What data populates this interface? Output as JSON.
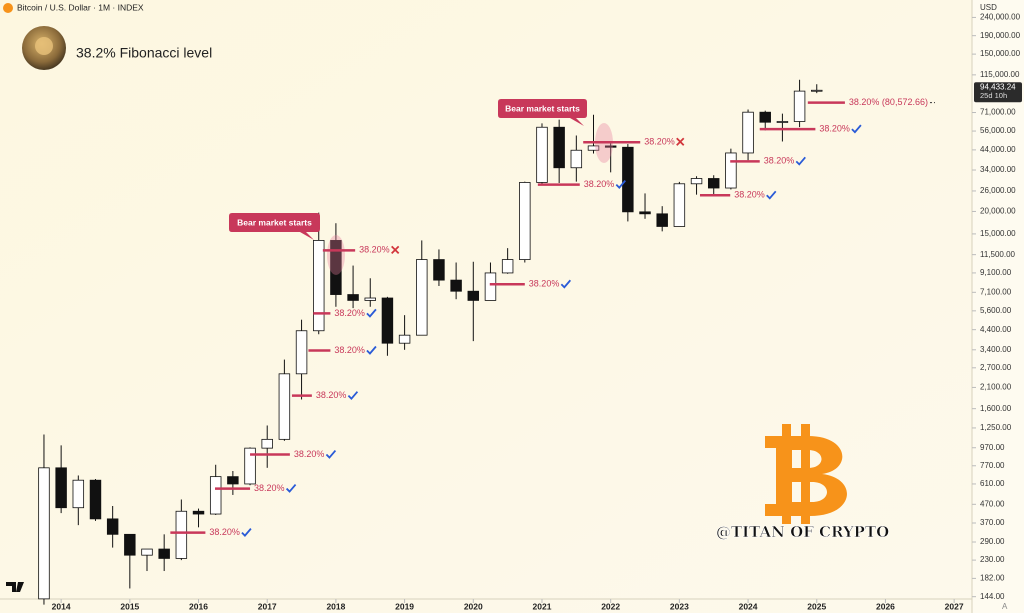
{
  "chart_data": {
    "type": "candlestick",
    "header": "Bitcoin / U.S. Dollar · 1M · INDEX",
    "title": "38.2% Fibonacci level",
    "currency": "USD",
    "scale_mode": "A",
    "watermark": "@TITAN OF CRYPTO",
    "log_scale": true,
    "x": [
      2013.75,
      2014.0,
      2014.25,
      2014.5,
      2014.75,
      2015.0,
      2015.25,
      2015.5,
      2015.75,
      2016.0,
      2016.25,
      2016.5,
      2016.75,
      2017.0,
      2017.25,
      2017.5,
      2017.75,
      2018.0,
      2018.25,
      2018.5,
      2018.75,
      2019.0,
      2019.25,
      2019.5,
      2019.75,
      2020.0,
      2020.25,
      2020.5,
      2020.75,
      2021.0,
      2021.25,
      2021.5,
      2021.75,
      2022.0,
      2022.25,
      2022.5,
      2022.75,
      2023.0,
      2023.25,
      2023.5,
      2023.75,
      2024.0,
      2024.25,
      2024.5,
      2024.75,
      2025.0
    ],
    "open": [
      140,
      750,
      450,
      640,
      390,
      320,
      245,
      265,
      235,
      430,
      415,
      670,
      610,
      965,
      1080,
      2500,
      4340,
      13800,
      6900,
      6400,
      6600,
      3700,
      4100,
      10800,
      8300,
      7200,
      6400,
      9100,
      10800,
      29000,
      58800,
      35000,
      43800,
      46300,
      45500,
      19900,
      19400,
      16500,
      28500,
      30500,
      27000,
      42300,
      71300,
      62700,
      63300,
      93400
    ],
    "high": [
      1150,
      1000,
      680,
      650,
      460,
      320,
      265,
      320,
      500,
      445,
      780,
      720,
      975,
      1290,
      3000,
      5000,
      19700,
      17200,
      10000,
      8500,
      6700,
      5300,
      13800,
      12300,
      10400,
      10500,
      10400,
      12500,
      29300,
      61800,
      64800,
      52900,
      69000,
      48200,
      47400,
      25200,
      21400,
      29200,
      31400,
      31800,
      44700,
      73800,
      72700,
      70000,
      108000,
      102000
    ],
    "low": [
      130,
      420,
      360,
      380,
      270,
      160,
      200,
      200,
      230,
      350,
      410,
      530,
      600,
      750,
      1060,
      1800,
      4150,
      5900,
      5800,
      5900,
      3150,
      3400,
      4100,
      7700,
      6500,
      3800,
      6400,
      9000,
      10400,
      28000,
      28800,
      29300,
      42000,
      33000,
      17600,
      18200,
      15500,
      16500,
      24800,
      24900,
      26500,
      38500,
      56500,
      49000,
      58900,
      91000
    ],
    "close": [
      750,
      450,
      640,
      390,
      320,
      245,
      265,
      235,
      430,
      415,
      670,
      610,
      965,
      1080,
      2500,
      4340,
      13800,
      6900,
      6400,
      6600,
      3700,
      4100,
      10800,
      8300,
      7200,
      6400,
      9100,
      10800,
      29000,
      58800,
      35000,
      43800,
      46300,
      45500,
      19900,
      19400,
      16500,
      28500,
      30500,
      27000,
      42300,
      71300,
      62700,
      63300,
      93400,
      94433.24
    ],
    "xlim": [
      2013.11,
      2027.26
    ],
    "xticks": [
      2014,
      2015,
      2016,
      2017,
      2018,
      2019,
      2020,
      2021,
      2022,
      2023,
      2024,
      2025,
      2026,
      2027
    ],
    "ylim": [
      138,
      300000
    ],
    "yticks": [
      {
        "value": 144,
        "label": "144.00"
      },
      {
        "value": 182,
        "label": "182.00"
      },
      {
        "value": 230,
        "label": "230.00"
      },
      {
        "value": 290,
        "label": "290.00"
      },
      {
        "value": 370,
        "label": "370.00"
      },
      {
        "value": 470,
        "label": "470.00"
      },
      {
        "value": 610,
        "label": "610.00"
      },
      {
        "value": 770,
        "label": "770.00"
      },
      {
        "value": 970,
        "label": "970.00"
      },
      {
        "value": 1250,
        "label": "1,250.00"
      },
      {
        "value": 1600,
        "label": "1,600.00"
      },
      {
        "value": 2100,
        "label": "2,100.00"
      },
      {
        "value": 2700,
        "label": "2,700.00"
      },
      {
        "value": 3400,
        "label": "3,400.00"
      },
      {
        "value": 4400,
        "label": "4,400.00"
      },
      {
        "value": 5600,
        "label": "5,600.00"
      },
      {
        "value": 7100,
        "label": "7,100.00"
      },
      {
        "value": 9100,
        "label": "9,100.00"
      },
      {
        "value": 11500,
        "label": "11,500.00"
      },
      {
        "value": 15000,
        "label": "15,000.00"
      },
      {
        "value": 20000,
        "label": "20,000.00"
      },
      {
        "value": 26000,
        "label": "26,000.00"
      },
      {
        "value": 34000,
        "label": "34,000.00"
      },
      {
        "value": 44000,
        "label": "44,000.00"
      },
      {
        "value": 56000,
        "label": "56,000.00"
      },
      {
        "value": 71000,
        "label": "71,000.00"
      },
      {
        "value": 115000,
        "label": "115,000.00"
      },
      {
        "value": 150000,
        "label": "150,000.00"
      },
      {
        "value": 190000,
        "label": "190,000.00"
      },
      {
        "value": 240000,
        "label": "240,000.00"
      }
    ],
    "last_price": {
      "value": 94433.24,
      "label": "94,433.24"
    },
    "countdown": "25d 10h",
    "fib_levels": [
      {
        "x": [
          2015.59,
          2016.1
        ],
        "value": 327,
        "label": "38.20%",
        "marker": "check"
      },
      {
        "x": [
          2016.24,
          2016.75
        ],
        "value": 575,
        "label": "38.20%",
        "marker": "check"
      },
      {
        "x": [
          2016.75,
          2017.33
        ],
        "value": 889,
        "label": "38.20%",
        "marker": "check"
      },
      {
        "x": [
          2017.36,
          2017.65
        ],
        "value": 1890,
        "label": "38.20%",
        "marker": "check"
      },
      {
        "x": [
          2017.6,
          2017.92
        ],
        "value": 3370,
        "label": "38.20%",
        "marker": "check"
      },
      {
        "x": [
          2017.67,
          2017.92
        ],
        "value": 5420,
        "label": "38.20%",
        "marker": "check"
      },
      {
        "x": [
          2017.81,
          2018.28
        ],
        "value": 12150,
        "label": "38.20%",
        "marker": "cross"
      },
      {
        "x": [
          2020.24,
          2020.75
        ],
        "value": 7870,
        "label": "38.20%",
        "marker": "check"
      },
      {
        "x": [
          2020.94,
          2021.55
        ],
        "value": 28200,
        "label": "38.20%",
        "marker": "check"
      },
      {
        "x": [
          2021.6,
          2022.43
        ],
        "value": 48500,
        "label": "38.20%",
        "marker": "cross"
      },
      {
        "x": [
          2023.3,
          2023.74
        ],
        "value": 24600,
        "label": "38.20%",
        "marker": "check"
      },
      {
        "x": [
          2023.74,
          2024.17
        ],
        "value": 38000,
        "label": "38.20%",
        "marker": "check"
      },
      {
        "x": [
          2024.17,
          2024.98
        ],
        "value": 57400,
        "label": "38.20%",
        "marker": "check"
      },
      {
        "x": [
          2024.87,
          2025.41
        ],
        "value": 80572.66,
        "label": "38.20% (80,572.66)",
        "marker": "none"
      }
    ],
    "annotations": [
      {
        "text": "Bear market starts"
      },
      {
        "text": "Bear market starts"
      }
    ]
  }
}
